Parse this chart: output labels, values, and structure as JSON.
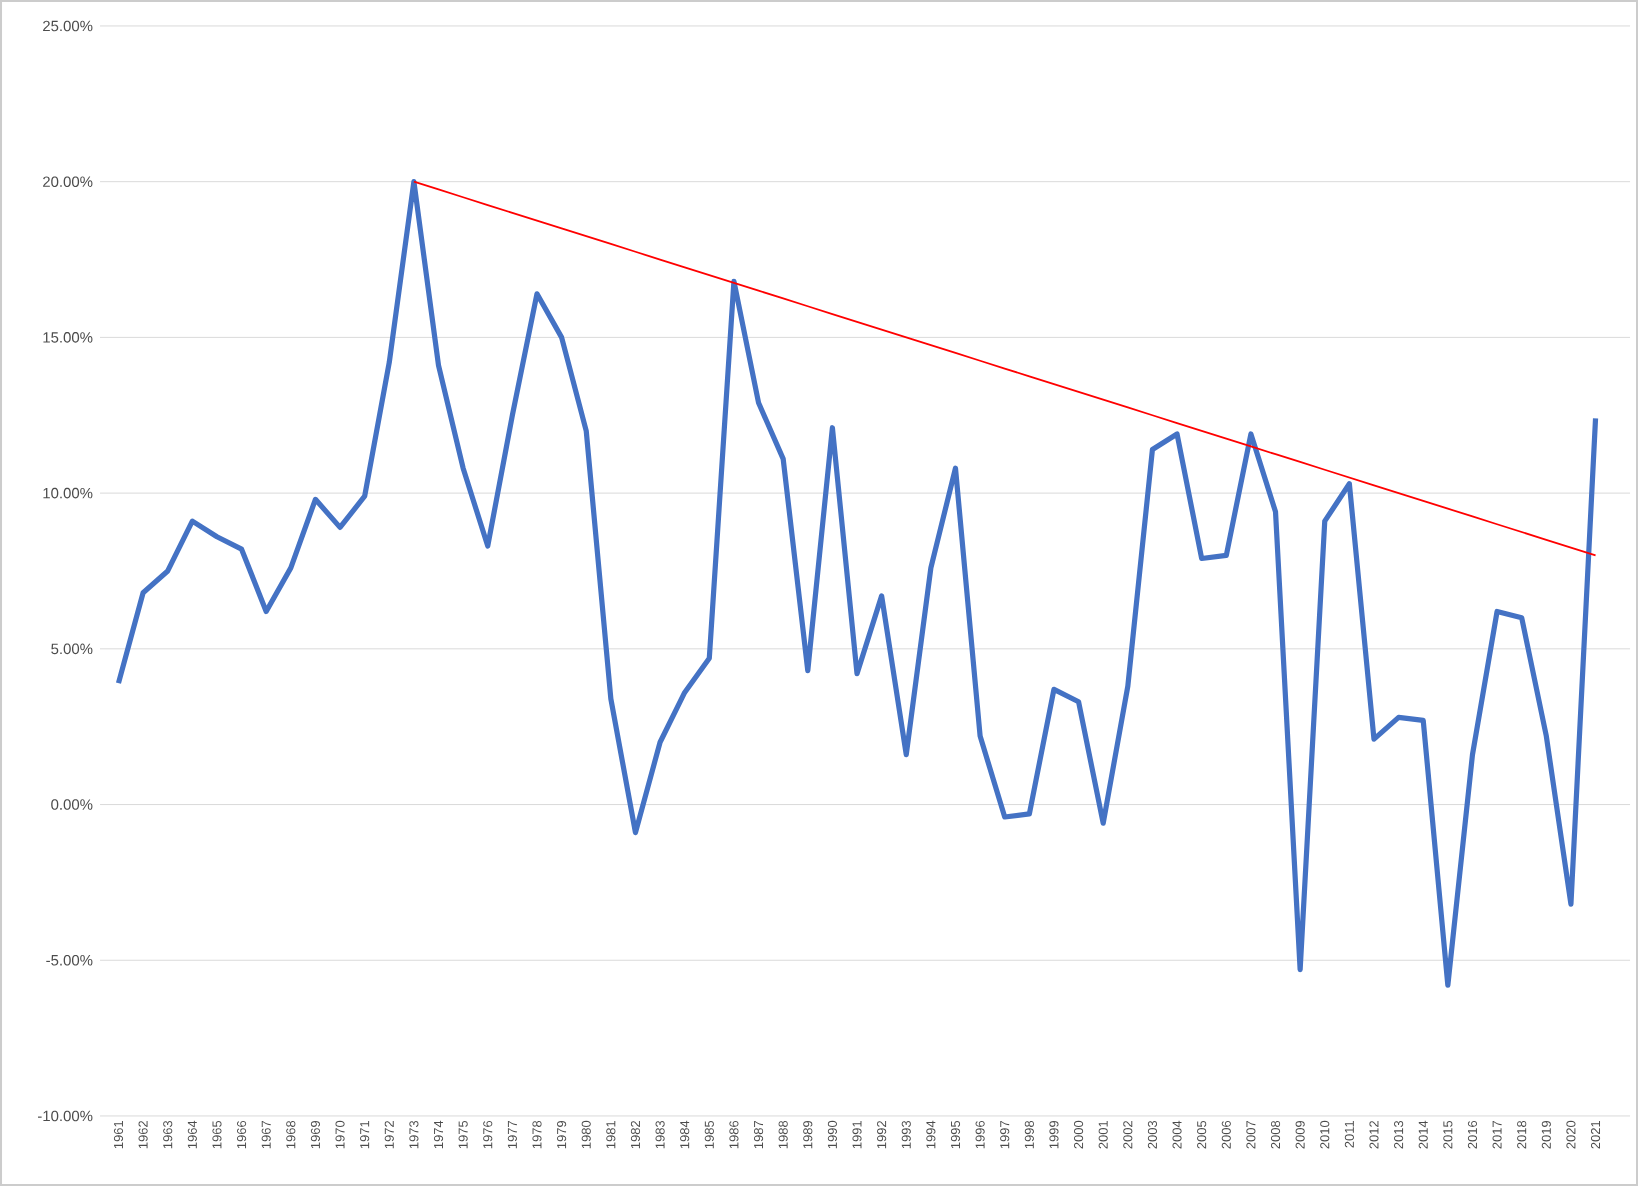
{
  "chart_data": {
    "type": "line",
    "categories": [
      "1961",
      "1962",
      "1963",
      "1964",
      "1965",
      "1966",
      "1967",
      "1968",
      "1969",
      "1970",
      "1971",
      "1972",
      "1973",
      "1974",
      "1975",
      "1976",
      "1977",
      "1978",
      "1979",
      "1980",
      "1981",
      "1982",
      "1983",
      "1984",
      "1985",
      "1986",
      "1987",
      "1988",
      "1989",
      "1990",
      "1991",
      "1992",
      "1993",
      "1994",
      "1995",
      "1996",
      "1997",
      "1998",
      "1999",
      "2000",
      "2001",
      "2002",
      "2003",
      "2004",
      "2005",
      "2006",
      "2007",
      "2008",
      "2009",
      "2010",
      "2011",
      "2012",
      "2013",
      "2014",
      "2015",
      "2016",
      "2017",
      "2018",
      "2019",
      "2020",
      "2021"
    ],
    "series": [
      {
        "color": "#4472c4",
        "values": [
          3.9,
          6.8,
          7.5,
          9.1,
          8.6,
          8.2,
          6.2,
          7.6,
          9.8,
          8.9,
          9.9,
          14.2,
          20.0,
          14.1,
          10.8,
          8.3,
          12.5,
          16.4,
          15.0,
          12.0,
          3.4,
          -0.9,
          2.0,
          3.6,
          4.7,
          16.8,
          12.9,
          11.1,
          4.3,
          12.1,
          4.2,
          6.7,
          1.6,
          7.6,
          10.8,
          2.2,
          -0.4,
          -0.3,
          3.7,
          3.3,
          -0.6,
          3.8,
          11.4,
          11.9,
          7.9,
          8.0,
          11.9,
          9.4,
          -5.3,
          9.1,
          10.3,
          2.1,
          2.8,
          2.7,
          -5.8,
          1.6,
          6.2,
          6.0,
          2.2,
          -3.2,
          12.4
        ]
      },
      {
        "type": "line",
        "color": "#ff0000",
        "values": [
          null,
          null,
          null,
          null,
          null,
          null,
          null,
          null,
          null,
          null,
          null,
          null,
          20.0,
          19.75,
          19.5,
          19.25,
          19.0,
          18.75,
          18.5,
          18.25,
          18.0,
          17.75,
          17.5,
          17.25,
          17.0,
          16.75,
          16.5,
          16.25,
          16.0,
          15.75,
          15.5,
          15.25,
          15.0,
          14.75,
          14.5,
          14.25,
          14.0,
          13.75,
          13.5,
          13.25,
          13.0,
          12.75,
          12.5,
          12.25,
          12.0,
          11.75,
          11.5,
          11.25,
          11.0,
          10.75,
          10.5,
          10.25,
          10.0,
          9.75,
          9.5,
          9.25,
          9.0,
          8.75,
          8.5,
          8.25,
          8.0
        ]
      }
    ],
    "ylim": [
      -10,
      25
    ],
    "yticks": [
      {
        "value": -10,
        "label": "-10.00%"
      },
      {
        "value": -5,
        "label": "-5.00%"
      },
      {
        "value": 0,
        "label": "0.00%"
      },
      {
        "value": 5,
        "label": "5.00%"
      },
      {
        "value": 10,
        "label": "10.00%"
      },
      {
        "value": 15,
        "label": "15.00%"
      },
      {
        "value": 20,
        "label": "20.00%"
      },
      {
        "value": 25,
        "label": "25.00%"
      }
    ],
    "grid": "y",
    "marker": "none",
    "line_style": "solid"
  }
}
